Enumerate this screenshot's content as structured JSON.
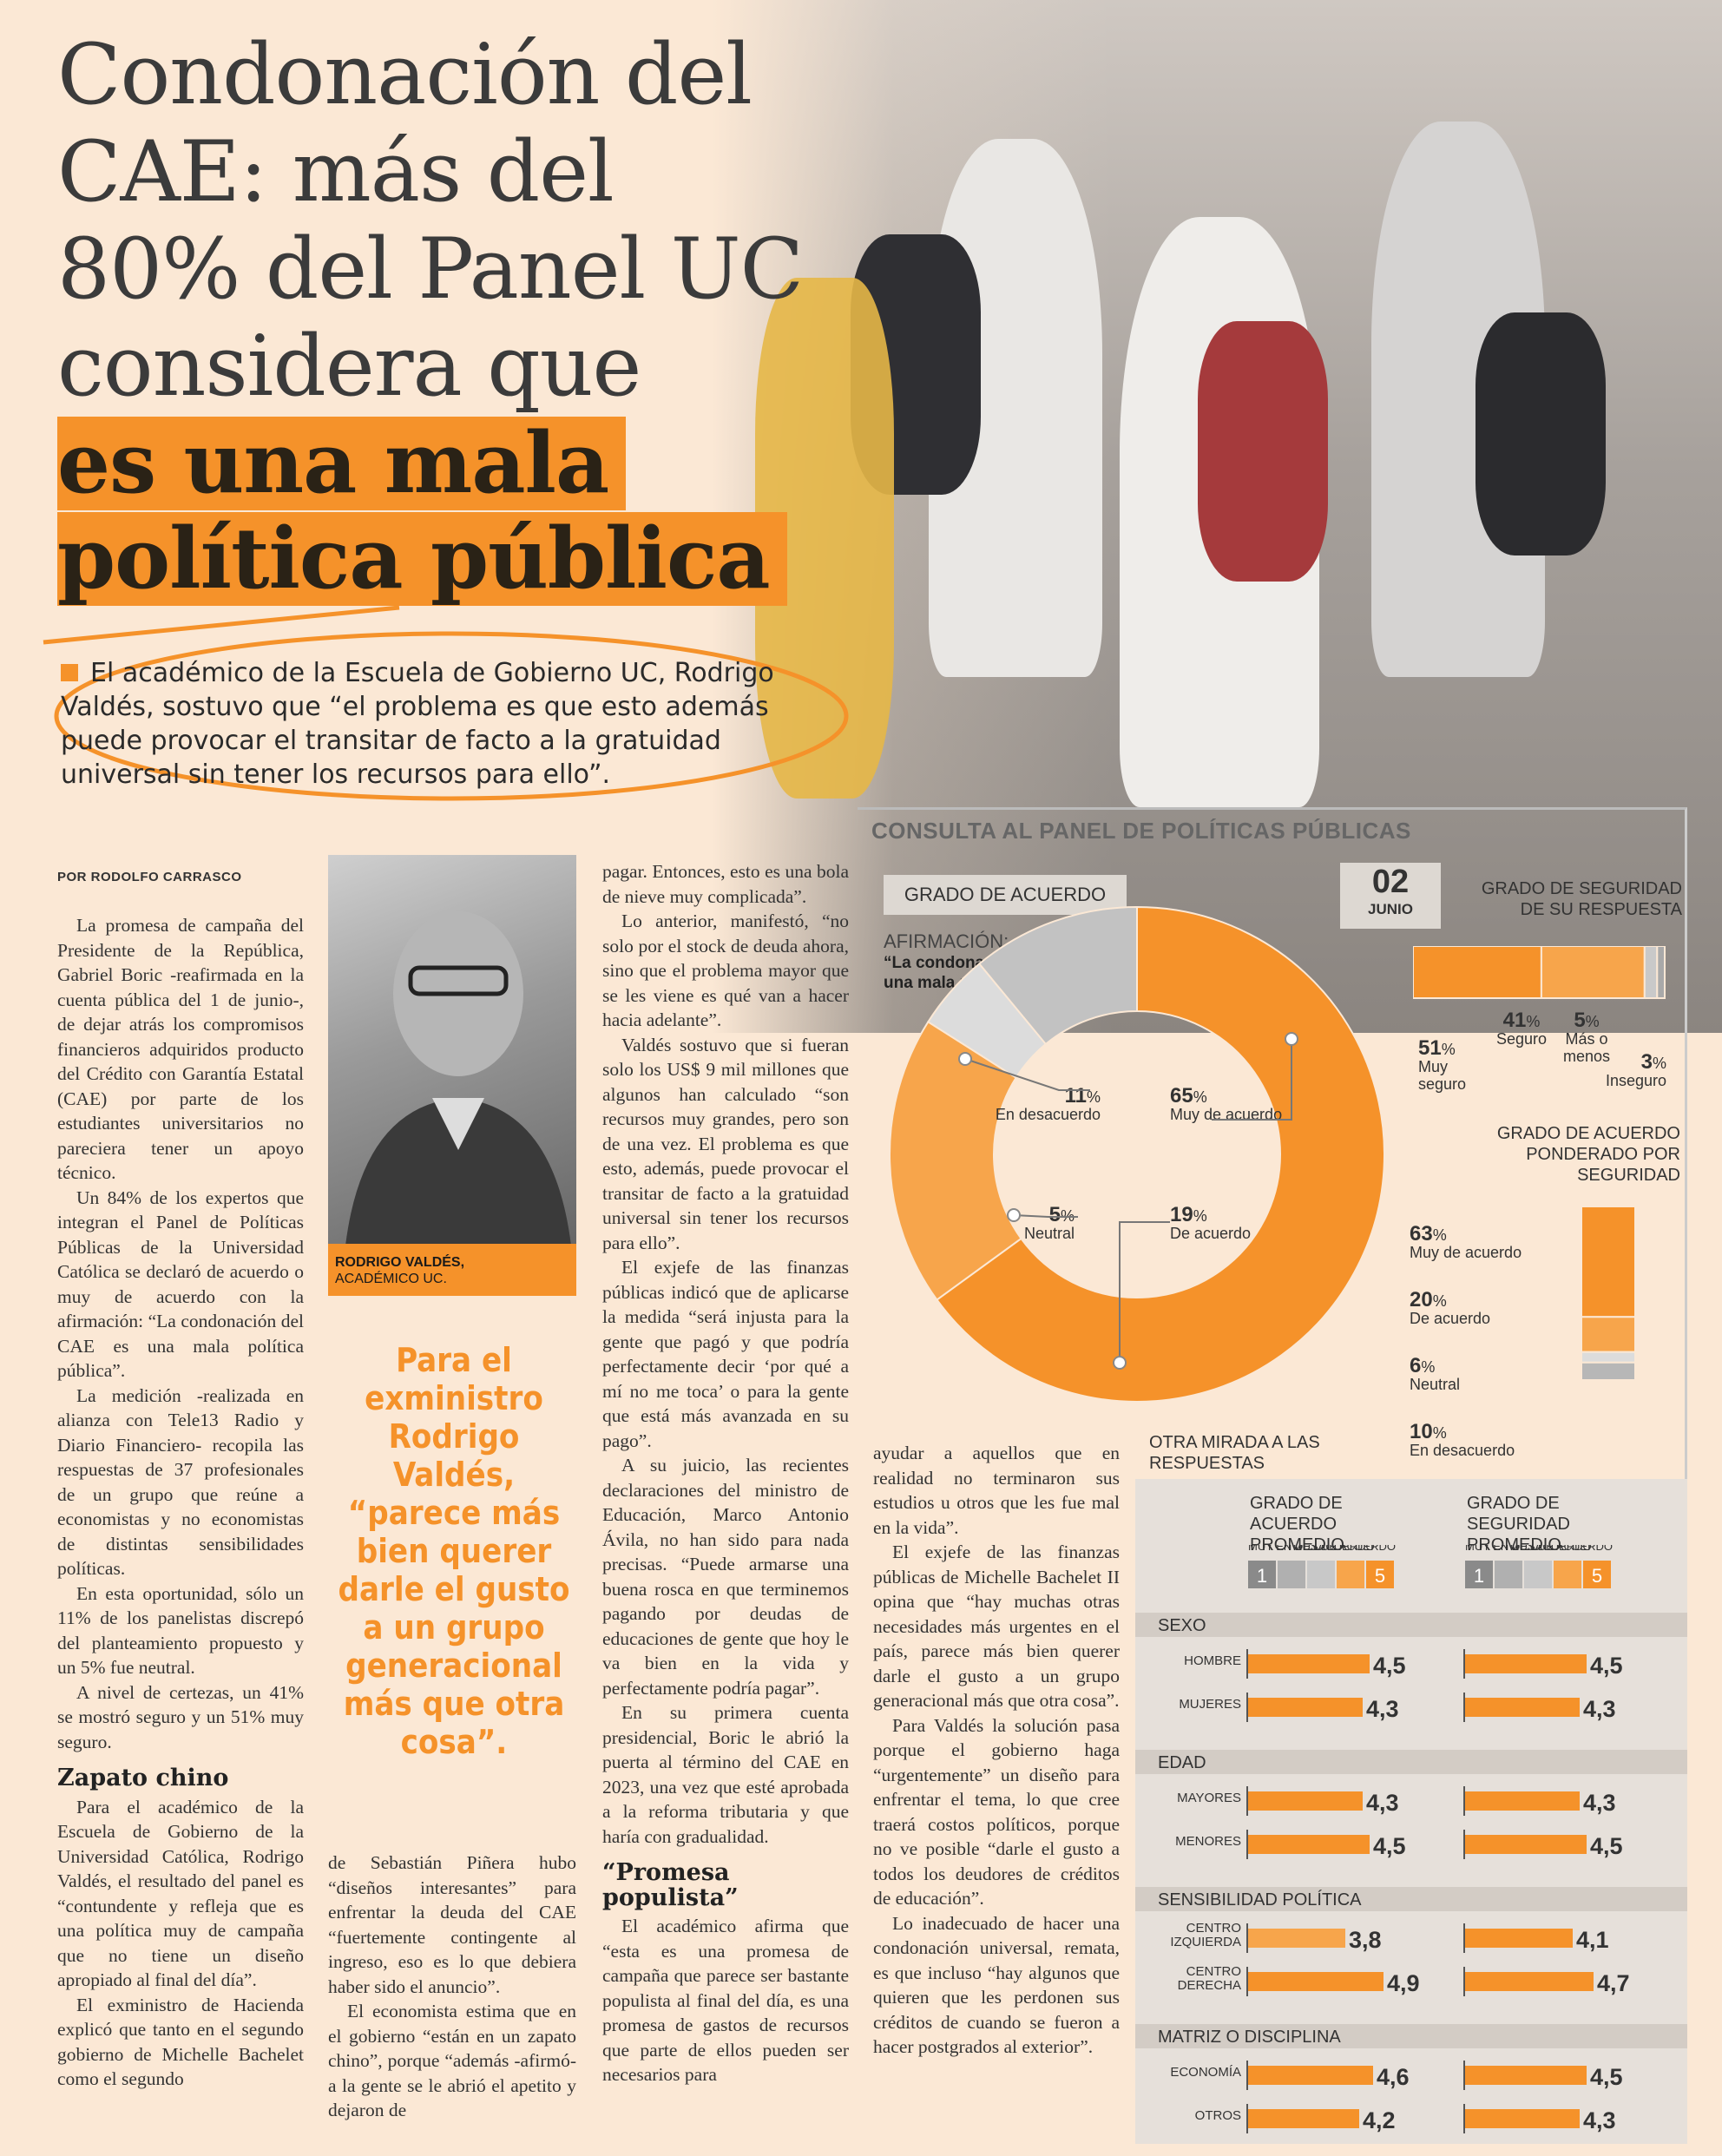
{
  "headline": {
    "lines": [
      "Condonación del",
      "CAE: más del",
      "80% del Panel UC",
      "considera que"
    ],
    "highlight": [
      "es una mala",
      "política pública"
    ]
  },
  "lead": "El académico de la Escuela de Gobierno UC, Rodrigo Valdés, sostuvo que “el problema es que esto además puede provocar el transitar de facto a la gratuidad universal sin tener los recursos para ello”.",
  "byline": "POR RODOLFO CARRASCO",
  "portrait_caption": {
    "name": "RODRIGO VALDÉS,",
    "role": "ACADÉMICO UC."
  },
  "pull_quote": "Para el exministro Rodrigo Valdés, “parece más bien querer darle el gusto a un grupo generacional más que otra cosa”.",
  "col1": {
    "paragraphs": [
      "La promesa de campaña del Presidente de la República, Gabriel Boric -reafirmada en la cuenta pública del 1 de junio-, de dejar atrás los compromisos financieros adquiridos producto del Crédito con Garantía Estatal (CAE) por parte de los estudiantes universitarios no pareciera tener un apoyo técnico.",
      "Un 84% de los expertos que integran el Panel de Políticas Públicas de la Universidad Católica se declaró de acuerdo o muy de acuerdo con la afirmación: “La condonación del CAE es una mala política pública”.",
      "La medición -realizada en alianza con Tele13 Radio y Diario Financiero- recopila las respuestas de 37 profesionales de un grupo que reúne a economistas y no economistas de distintas sensibilidades políticas.",
      "En esta oportunidad, sólo un 11% de los panelistas discrepó del planteamiento propuesto y un 5% fue neutral.",
      "A nivel de certezas, un 41% se mostró seguro y un 51% muy seguro."
    ],
    "subhead": "Zapato chino",
    "paragraphs2": [
      "Para el académico de la Escuela de Gobierno de la Universidad Católica, Rodrigo Valdés, el resultado del panel es “contundente y refleja que es una política muy de campaña que no tiene un diseño apropiado al final del día”.",
      "El exministro de Hacienda explicó que tanto en el segundo gobierno de Michelle Bachelet como el segundo"
    ]
  },
  "col2": {
    "paragraphs": [
      "de Sebastián Piñera hubo “diseños interesantes” para enfrentar la deuda del CAE “fuertemente contingente al ingreso, eso es lo que debiera haber sido el anuncio”.",
      "El economista estima que en el gobierno “están en un zapato chino”, porque “además -afirmó- a la gente se le abrió el apetito y dejaron de"
    ]
  },
  "col3": {
    "paragraphs": [
      "pagar. Entonces, esto es una bola de nieve muy complicada”.",
      "Lo anterior, manifestó, “no solo por el stock de deuda ahora, sino que el problema mayor que se les viene es qué van a hacer hacia adelante”.",
      "Valdés sostuvo que si fueran solo los US$ 9 mil millones que algunos han calculado “son recursos muy grandes, pero son de una vez. El problema es que esto, además, puede provocar el transitar de facto a la gratuidad universal sin tener los recursos para ello”.",
      "El exjefe de las finanzas públicas indicó que de aplicarse la medida “será injusta para la gente que pagó y que podría perfectamente decir ‘por qué a mí no me toca’ o para la gente que está más avanzada en su pago”.",
      "A su juicio, las recientes declaraciones del ministro de Educación, Marco Antonio Ávila, no han sido para nada precisas. “Puede armarse una buena rosca en que terminemos pagando por deudas de educaciones de gente que hoy le va bien en la vida y perfectamente podría pagar”.",
      "En su primera cuenta presidencial, Boric le abrió la puerta al término del CAE en 2023, una vez que esté aprobada a la reforma tributaria y que haría con gradualidad."
    ],
    "subhead": "“Promesa populista”",
    "paragraphs2": [
      "El académico afirma que “esta es una promesa de campaña que parece ser bastante populista al final del día, es una promesa de gastos de recursos que parte de ellos pueden ser necesarios para"
    ]
  },
  "col4": {
    "paragraphs": [
      "ayudar a aquellos que en realidad no terminaron sus estudios u otros que les fue mal en la vida”.",
      "El exjefe de las finanzas públicas de Michelle Bachelet II opina que “hay muchas otras necesidades más urgentes en el país, parece más bien querer darle el gusto a un grupo generacional más que otra cosa”.",
      "Para Valdés la solución pasa porque el gobierno haga “urgentemente” un diseño para enfrentar el tema, lo que cree traerá costos políticos, porque no ve posible “darle el gusto a todos los deudores de créditos de educación”.",
      "Lo inadecuado de hacer una condonación universal, remata, es que incluso “hay algunos que quieren que les perdonen sus créditos de cuando se fueron a hacer postgrados al exterior”."
    ]
  },
  "infographic": {
    "title": "CONSULTA AL PANEL DE POLÍTICAS PÚBLICAS",
    "grado_title": "GRADO DE ACUERDO",
    "date_day": "02",
    "date_month": "JUNIO",
    "afirmacion_label": "AFIRMACIÓN:",
    "afirmacion": "“La condonación del CAE es una mala política pública”.",
    "seguridad_title": "GRADO DE SEGURIDAD DE SU RESPUESTA",
    "ponderado_title": "GRADO DE ACUERDO PONDERADO POR SEGURIDAD",
    "otra_title": "OTRA MIRADA A LAS RESPUESTAS",
    "prom_acuerdo_title": "GRADO DE ACUERDO PROMEDIO",
    "prom_seguridad_title": "GRADO DE SEGURIDAD PROMEDIO",
    "scale_low": "MUY EN DESACUERDO",
    "scale_high": "MUY DE ACUERDO",
    "scale_low_val": "1",
    "scale_high_val": "5",
    "scale_low_b": "MUY EN DESACUERDO",
    "scale_high_b": "MUY DE ACUERDO",
    "pct_sign": "%"
  },
  "chart_data": [
    {
      "type": "pie",
      "title": "GRADO DE ACUERDO",
      "categories": [
        "Muy de acuerdo",
        "De acuerdo",
        "Neutral",
        "En desacuerdo"
      ],
      "values": [
        65,
        19,
        5,
        11
      ],
      "colors": [
        "#f5922a",
        "#f7a54b",
        "#dcdcdc",
        "#c2c2c2"
      ],
      "labels": {
        "muy": {
          "num": "65",
          "text": "Muy de acuerdo"
        },
        "de": {
          "num": "19",
          "text": "De acuerdo"
        },
        "neu": {
          "num": "5",
          "text": "Neutral"
        },
        "des": {
          "num": "11",
          "text": "En desacuerdo"
        }
      }
    },
    {
      "type": "bar",
      "title": "GRADO DE SEGURIDAD DE SU RESPUESTA",
      "categories": [
        "Muy seguro",
        "Seguro",
        "Más o menos",
        "Inseguro"
      ],
      "values": [
        51,
        41,
        5,
        3
      ],
      "colors": [
        "#f5922a",
        "#f7a54b",
        "#c9c9c9",
        "#a9a9a9"
      ],
      "labels": {
        "a": {
          "num": "51",
          "text": "Muy seguro"
        },
        "b": {
          "num": "41",
          "text": "Seguro"
        },
        "c": {
          "num": "5",
          "text": "Más o menos"
        },
        "d": {
          "num": "3",
          "text": "Inseguro"
        }
      }
    },
    {
      "type": "bar",
      "title": "GRADO DE ACUERDO PONDERADO POR SEGURIDAD",
      "categories": [
        "Muy de acuerdo",
        "De acuerdo",
        "Neutral",
        "En desacuerdo"
      ],
      "values": [
        63,
        20,
        6,
        10
      ],
      "colors": [
        "#f5922a",
        "#f7a54b",
        "#dcdcdc",
        "#b7b7b7"
      ],
      "labels": {
        "a": {
          "num": "63",
          "text": "Muy de acuerdo"
        },
        "b": {
          "num": "20",
          "text": "De acuerdo"
        },
        "c": {
          "num": "6",
          "text": "Neutral"
        },
        "d": {
          "num": "10",
          "text": "En desacuerdo"
        }
      }
    },
    {
      "type": "bar",
      "title": "OTRA MIRADA A LAS RESPUESTAS",
      "xlim": [
        1,
        5
      ],
      "groups": [
        {
          "name": "SEXO",
          "rows": [
            {
              "label": "HOMBRE",
              "acuerdo": 4.5,
              "acuerdo_txt": "4,5",
              "seguridad": 4.5,
              "seguridad_txt": "4,5"
            },
            {
              "label": "MUJERES",
              "acuerdo": 4.3,
              "acuerdo_txt": "4,3",
              "seguridad": 4.3,
              "seguridad_txt": "4,3"
            }
          ]
        },
        {
          "name": "EDAD",
          "rows": [
            {
              "label": "MAYORES",
              "acuerdo": 4.3,
              "acuerdo_txt": "4,3",
              "seguridad": 4.3,
              "seguridad_txt": "4,3"
            },
            {
              "label": "MENORES",
              "acuerdo": 4.5,
              "acuerdo_txt": "4,5",
              "seguridad": 4.5,
              "seguridad_txt": "4,5"
            }
          ]
        },
        {
          "name": "SENSIBILIDAD POLÍTICA",
          "rows": [
            {
              "label": "CENTRO IZQUIERDA",
              "acuerdo": 3.8,
              "acuerdo_txt": "3,8",
              "seguridad": 4.1,
              "seguridad_txt": "4,1"
            },
            {
              "label": "CENTRO DERECHA",
              "acuerdo": 4.9,
              "acuerdo_txt": "4,9",
              "seguridad": 4.7,
              "seguridad_txt": "4,7"
            }
          ]
        },
        {
          "name": "MATRIZ O DISCIPLINA",
          "rows": [
            {
              "label": "ECONOMÍA",
              "acuerdo": 4.6,
              "acuerdo_txt": "4,6",
              "seguridad": 4.5,
              "seguridad_txt": "4,5"
            },
            {
              "label": "OTROS",
              "acuerdo": 4.2,
              "acuerdo_txt": "4,2",
              "seguridad": 4.3,
              "seguridad_txt": "4,3"
            }
          ]
        }
      ]
    }
  ]
}
